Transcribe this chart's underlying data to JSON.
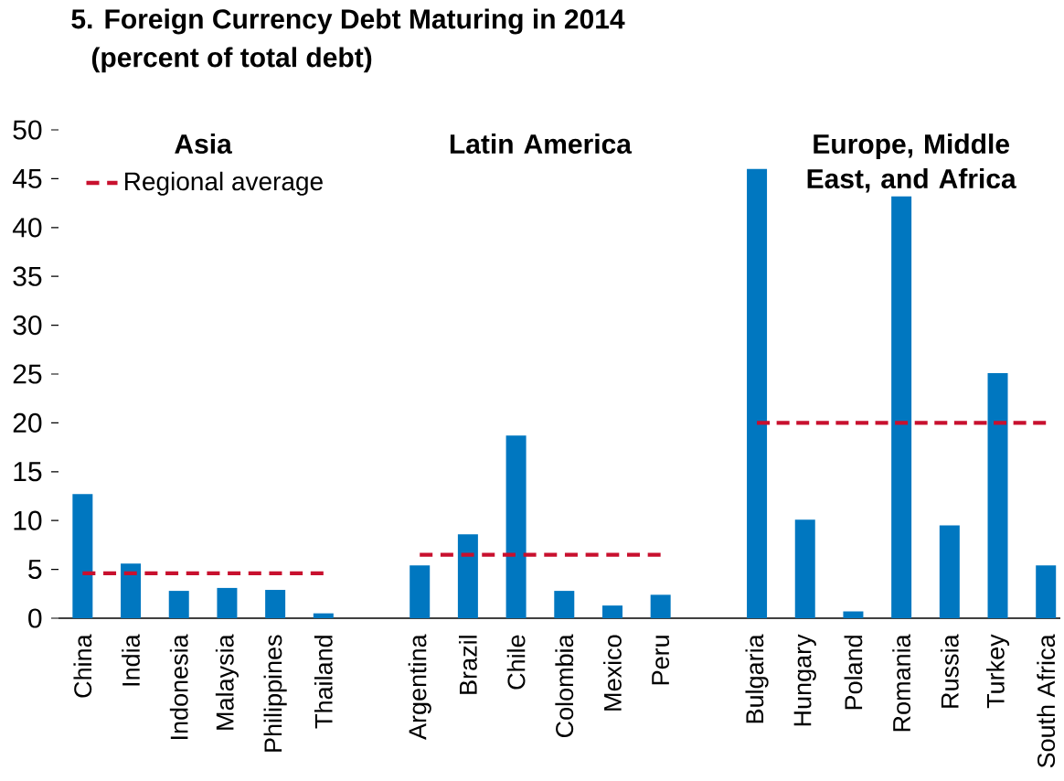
{
  "chart_data": {
    "type": "bar",
    "title": "5. Foreign Currency Debt Maturing in 2014",
    "subtitle": "(percent of total debt)",
    "categories": [
      "China",
      "India",
      "Indonesia",
      "Malaysia",
      "Philippines",
      "Thailand",
      null,
      "Argentina",
      "Brazil",
      "Chile",
      "Colombia",
      "Mexico",
      "Peru",
      null,
      "Bulgaria",
      "Hungary",
      "Poland",
      "Romania",
      "Russia",
      "Turkey",
      "South Africa"
    ],
    "series": [
      {
        "color": "#0077c0",
        "values": [
          12.7,
          5.6,
          2.8,
          3.1,
          2.9,
          0.5,
          null,
          5.4,
          8.6,
          18.7,
          2.8,
          1.3,
          2.4,
          null,
          46.0,
          10.1,
          0.7,
          43.2,
          9.5,
          25.1,
          5.4
        ]
      },
      {
        "type": "line",
        "name": "Regional average",
        "color": "#c8102e",
        "line_style": "dashed",
        "x": [
          "China",
          "Thailand"
        ],
        "values": [
          4.6,
          4.6
        ]
      },
      {
        "type": "line",
        "color": "#c8102e",
        "line_style": "dashed",
        "x": [
          "Argentina",
          "Peru"
        ],
        "values": [
          6.5,
          6.5
        ]
      },
      {
        "type": "line",
        "color": "#c8102e",
        "line_style": "dashed",
        "x": [
          "Bulgaria",
          "South Africa"
        ],
        "values": [
          20.0,
          20.0
        ]
      }
    ],
    "annotations": [
      "Asia",
      "Latin America",
      "Europe, Middle East, and Africa"
    ],
    "ylim": [
      0,
      50
    ],
    "yticks": [
      0,
      5,
      10,
      15,
      20,
      25,
      30,
      35,
      40,
      45,
      50
    ],
    "grid": false,
    "legend": "top left",
    "marker": "none"
  }
}
